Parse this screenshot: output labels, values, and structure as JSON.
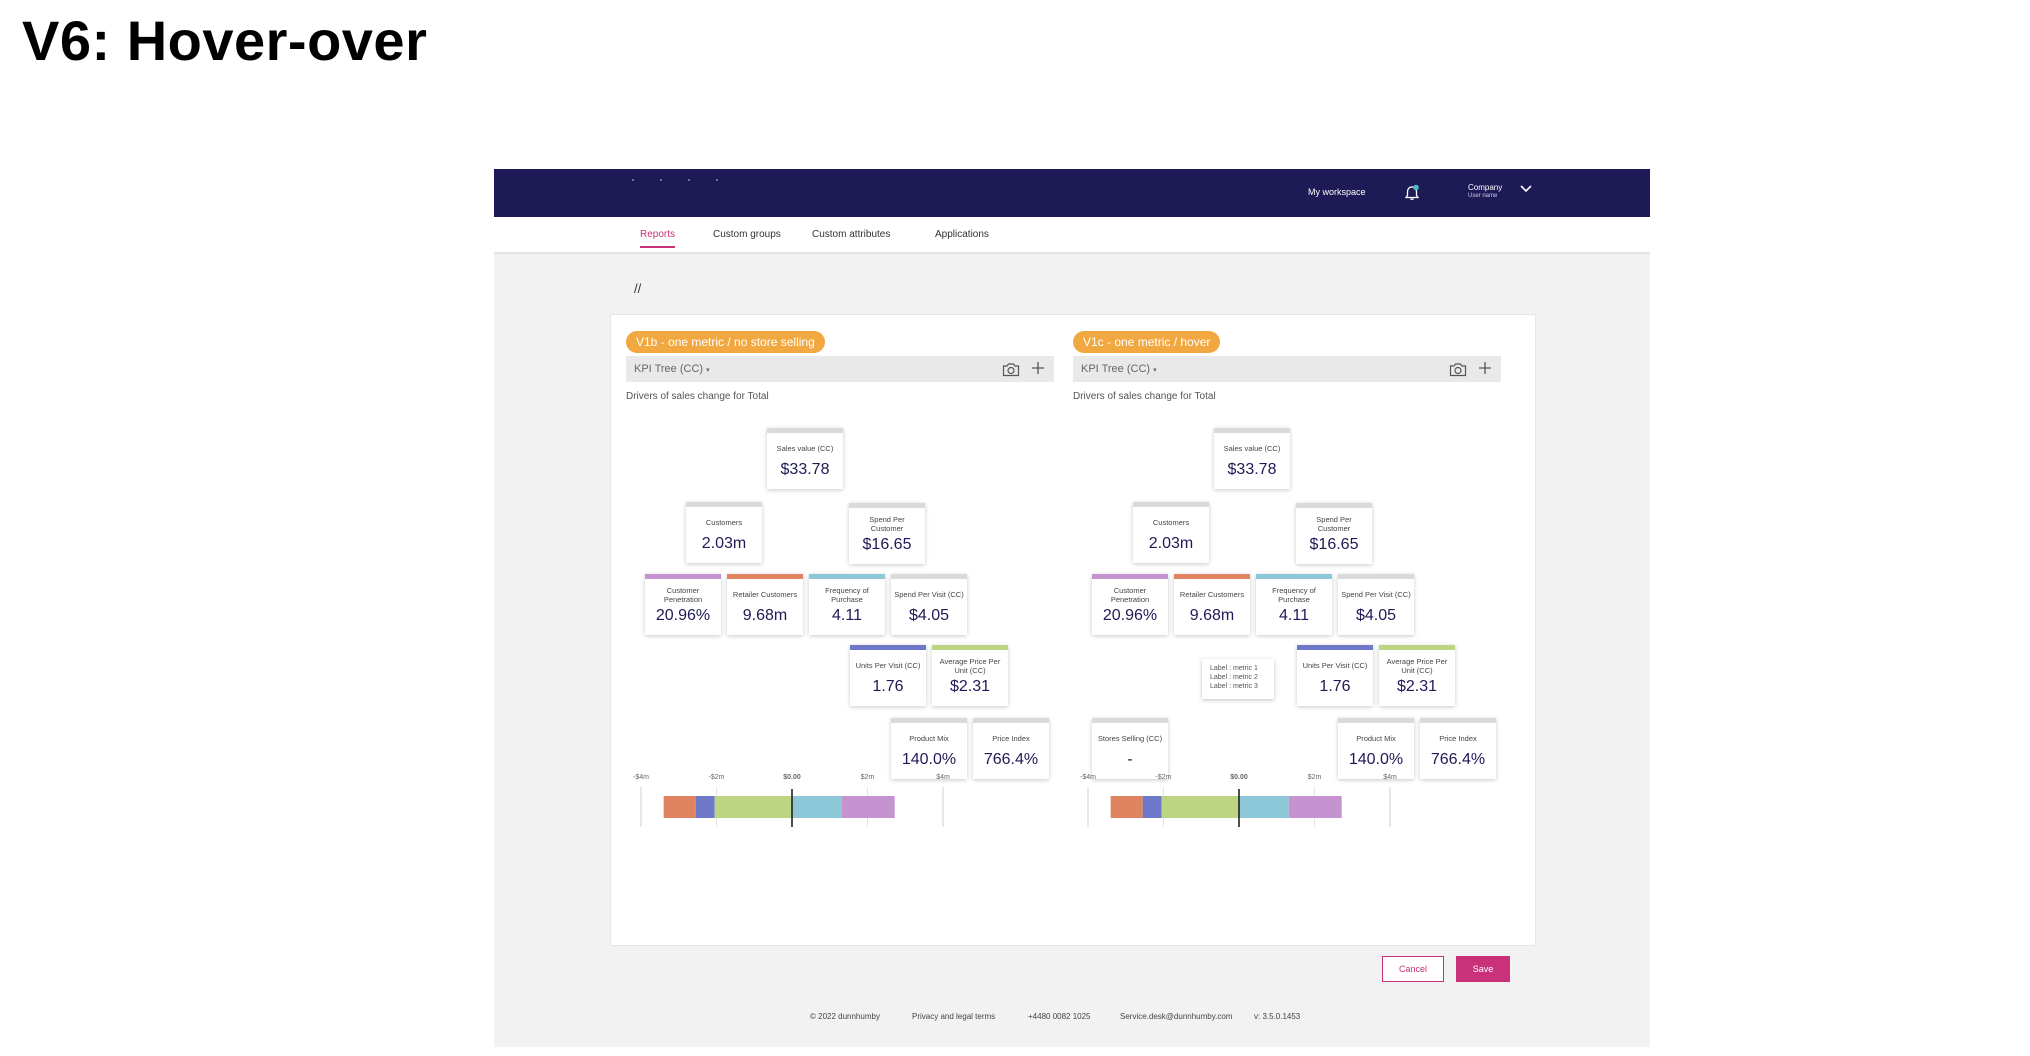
{
  "slide_title": "V6: Hover-over",
  "app": {
    "header": {
      "my_workspace": "My workspace",
      "company": "Company",
      "user_name": "User name",
      "icons": [
        "bell-icon",
        "chevron-down-icon"
      ],
      "colors": {
        "header_bg": "#1e1a55",
        "notification_dot": "#4db8c8"
      }
    },
    "nav": {
      "tabs": [
        {
          "label": "Reports",
          "active": true
        },
        {
          "label": "Custom groups",
          "active": false
        },
        {
          "label": "Custom attributes",
          "active": false
        },
        {
          "label": "Applications",
          "active": false
        }
      ]
    },
    "breadcrumb": "//",
    "panels": [
      {
        "badge": "V1b - one metric / no store selling",
        "kpi_select": "KPI Tree (CC)",
        "subtitle": "Drivers of sales change for Total",
        "nodes": {
          "sales_value": {
            "label": "Sales value (CC)",
            "value": "$33.78"
          },
          "customers": {
            "label": "Customers",
            "value": "2.03m"
          },
          "spend_per_customer": {
            "label": "Spend Per Customer",
            "value": "$16.65"
          },
          "customer_penetration": {
            "label": "Customer Penetration",
            "value": "20.96%"
          },
          "retailer_customers": {
            "label": "Retailer Customers",
            "value": "9.68m"
          },
          "frequency_of_purchase": {
            "label": "Frequency of Purchase",
            "value": "4.11"
          },
          "spend_per_visit": {
            "label": "Spend Per Visit (CC)",
            "value": "$4.05"
          },
          "units_per_visit": {
            "label": "Units Per Visit (CC)",
            "value": "1.76"
          },
          "avg_price_per_unit": {
            "label": "Average Price Per Unit (CC)",
            "value": "$2.31"
          },
          "product_mix": {
            "label": "Product Mix",
            "value": "140.0%"
          },
          "price_index": {
            "label": "Price Index",
            "value": "766.4%"
          }
        }
      },
      {
        "badge": "V1c - one metric / hover",
        "kpi_select": "KPI Tree (CC)",
        "subtitle": "Drivers of sales change for Total",
        "nodes": {
          "sales_value": {
            "label": "Sales value (CC)",
            "value": "$33.78"
          },
          "customers": {
            "label": "Customers",
            "value": "2.03m"
          },
          "spend_per_customer": {
            "label": "Spend Per Customer",
            "value": "$16.65"
          },
          "customer_penetration": {
            "label": "Customer Penetration",
            "value": "20.96%"
          },
          "retailer_customers": {
            "label": "Retailer Customers",
            "value": "9.68m"
          },
          "frequency_of_purchase": {
            "label": "Frequency of Purchase",
            "value": "4.11"
          },
          "spend_per_visit": {
            "label": "Spend Per Visit (CC)",
            "value": "$4.05"
          },
          "units_per_visit": {
            "label": "Units Per Visit (CC)",
            "value": "1.76"
          },
          "avg_price_per_unit": {
            "label": "Average Price Per Unit (CC)",
            "value": "$2.31"
          },
          "product_mix": {
            "label": "Product Mix",
            "value": "140.0%"
          },
          "price_index": {
            "label": "Price Index",
            "value": "766.4%"
          },
          "stores_selling": {
            "label": "Stores Selling (CC)",
            "value": "-"
          }
        },
        "tooltip": [
          "Label : metric 1",
          "Label : metric 2",
          "Label : metric 3"
        ]
      }
    ],
    "actions": {
      "cancel": "Cancel",
      "save": "Save"
    },
    "footer": {
      "copyright": "© 2022 dunnhumby",
      "privacy": "Privacy and legal terms",
      "phone": "+4480 0082 1025",
      "email": "Service.desk@dunnhumby.com",
      "version": "v: 3.5.0.1453"
    },
    "colors": {
      "accent": "#c9317a",
      "badge": "#f2a840",
      "value_text": "#1e1a55"
    }
  },
  "chart_data": [
    {
      "type": "bar",
      "orientation": "horizontal-stacked",
      "title": "",
      "x_ticks": [
        "-$4m",
        "-$2m",
        "$0.00",
        "$2m",
        "$4m"
      ],
      "xlim": [
        -4,
        4
      ],
      "unit": "$m",
      "segments": [
        {
          "name": "Retailer Customers",
          "start": -3.4,
          "end": -2.55,
          "color": "#df8360"
        },
        {
          "name": "Units Per Visit (CC)",
          "start": -2.55,
          "end": -2.05,
          "color": "#6d78c8"
        },
        {
          "name": "Average Price Per Unit (CC)",
          "start": -2.05,
          "end": 0.0,
          "color": "#bdd583"
        },
        {
          "name": "Frequency of Purchase",
          "start": 0.0,
          "end": 1.32,
          "color": "#8dc8d8"
        },
        {
          "name": "Customer Penetration",
          "start": 1.32,
          "end": 2.72,
          "color": "#c593cf"
        }
      ]
    },
    {
      "type": "bar",
      "orientation": "horizontal-stacked",
      "title": "",
      "x_ticks": [
        "-$4m",
        "-$2m",
        "$0.00",
        "$2m",
        "$4m"
      ],
      "xlim": [
        -4,
        4
      ],
      "unit": "$m",
      "segments": [
        {
          "name": "Retailer Customers",
          "start": -3.4,
          "end": -2.55,
          "color": "#df8360"
        },
        {
          "name": "Units Per Visit (CC)",
          "start": -2.55,
          "end": -2.05,
          "color": "#6d78c8"
        },
        {
          "name": "Average Price Per Unit (CC)",
          "start": -2.05,
          "end": 0.0,
          "color": "#bdd583"
        },
        {
          "name": "Frequency of Purchase",
          "start": 0.0,
          "end": 1.32,
          "color": "#8dc8d8"
        },
        {
          "name": "Customer Penetration",
          "start": 1.32,
          "end": 2.72,
          "color": "#c593cf"
        }
      ]
    }
  ]
}
